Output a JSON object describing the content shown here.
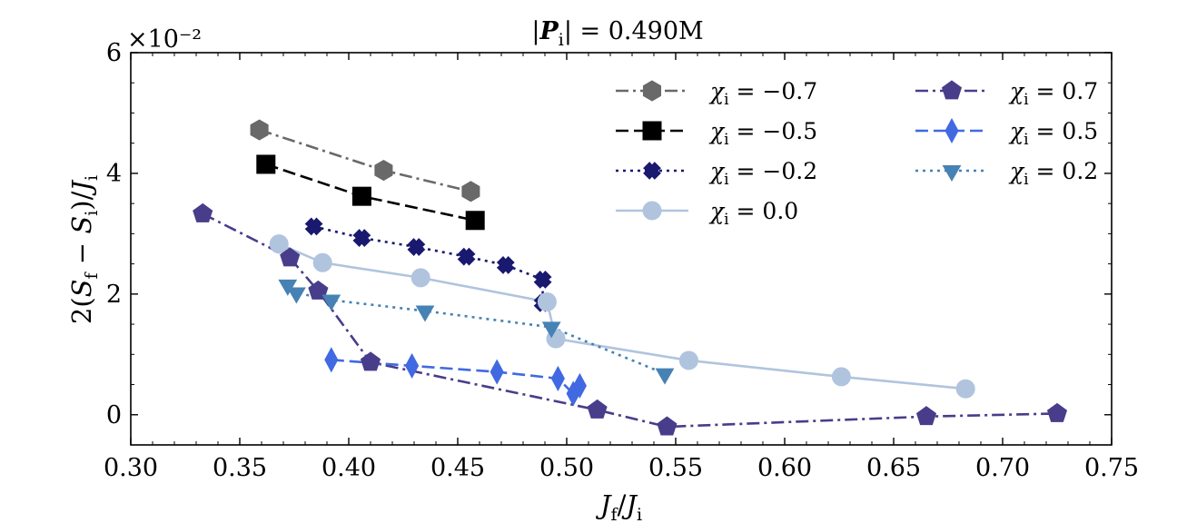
{
  "chart_data": {
    "type": "line",
    "title": "|P_i| = 0.490M",
    "xlabel": "J_f/J_i",
    "ylabel": "2(S_f − S_i)/J_i",
    "y_scale_label": "×10⁻²",
    "xlim": [
      0.3,
      0.75
    ],
    "ylim": [
      -0.5,
      6.0
    ],
    "xticks": [
      0.3,
      0.35,
      0.4,
      0.45,
      0.5,
      0.55,
      0.6,
      0.65,
      0.7,
      0.75
    ],
    "xtick_labels": [
      "0.30",
      "0.35",
      "0.40",
      "0.45",
      "0.50",
      "0.55",
      "0.60",
      "0.65",
      "0.70",
      "0.75"
    ],
    "yticks": [
      0,
      2,
      4,
      6
    ],
    "ytick_labels": [
      "0",
      "2",
      "4",
      "6"
    ],
    "legend_position": "top-right",
    "grid": false,
    "series": [
      {
        "name": "χ_i = −0.7",
        "label": "χi = −0.7",
        "color": "#696969",
        "marker": "hexagon",
        "linestyle": "dashdot",
        "x": [
          0.359,
          0.416,
          0.456
        ],
        "y": [
          4.72,
          4.05,
          3.7
        ]
      },
      {
        "name": "χ_i = −0.5",
        "label": "χi = −0.5",
        "color": "#000000",
        "marker": "square",
        "linestyle": "dashed",
        "x": [
          0.362,
          0.406,
          0.458
        ],
        "y": [
          4.15,
          3.62,
          3.22
        ]
      },
      {
        "name": "χ_i = −0.2",
        "label": "χi = −0.2",
        "color": "#191970",
        "marker": "x",
        "linestyle": "dotted",
        "x": [
          0.384,
          0.406,
          0.431,
          0.454,
          0.472,
          0.489,
          0.489
        ],
        "y": [
          3.12,
          2.93,
          2.78,
          2.62,
          2.48,
          2.24,
          1.85
        ]
      },
      {
        "name": "χ_i = 0.0",
        "label": "χi = 0.0",
        "color": "#b0c4de",
        "marker": "circle",
        "linestyle": "solid",
        "x": [
          0.368,
          0.388,
          0.433,
          0.491,
          0.495,
          0.556,
          0.626,
          0.683
        ],
        "y": [
          2.83,
          2.52,
          2.27,
          1.87,
          1.26,
          0.9,
          0.63,
          0.43
        ]
      },
      {
        "name": "χ_i = 0.7",
        "label": "χi = 0.7",
        "color": "#483d8b",
        "marker": "pentagon",
        "linestyle": "dashdot",
        "x": [
          0.333,
          0.373,
          0.386,
          0.41,
          0.514,
          0.546,
          0.665,
          0.725
        ],
        "y": [
          3.33,
          2.6,
          2.05,
          0.87,
          0.08,
          -0.2,
          -0.03,
          0.02
        ]
      },
      {
        "name": "χ_i = 0.5",
        "label": "χi = 0.5",
        "color": "#4169e1",
        "marker": "thin_diamond",
        "linestyle": "dashed",
        "x": [
          0.392,
          0.429,
          0.468,
          0.496,
          0.503,
          0.506
        ],
        "y": [
          0.91,
          0.81,
          0.71,
          0.6,
          0.35,
          0.48
        ]
      },
      {
        "name": "χ_i = 0.2",
        "label": "χi = 0.2",
        "color": "#4682b4",
        "marker": "triangle_down",
        "linestyle": "dotted",
        "x": [
          0.372,
          0.376,
          0.392,
          0.435,
          0.493,
          0.545
        ],
        "y": [
          2.15,
          2.02,
          1.9,
          1.72,
          1.45,
          0.68
        ]
      }
    ]
  }
}
